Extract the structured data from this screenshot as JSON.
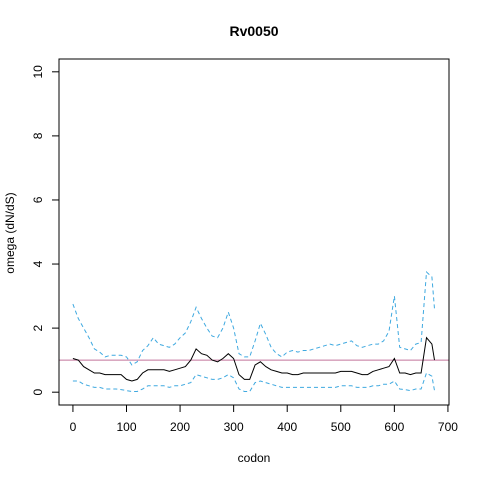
{
  "chart_data": {
    "type": "line",
    "title": "Rv0050",
    "xlabel": "codon",
    "ylabel": "omega (dN/dS)",
    "xlim": [
      -26,
      702
    ],
    "ylim": [
      -0.4,
      10.4
    ],
    "xticks": [
      0,
      100,
      200,
      300,
      400,
      500,
      600,
      700
    ],
    "yticks": [
      0,
      2,
      4,
      6,
      8,
      10
    ],
    "reference_line": {
      "y": 1.0,
      "color": "#c2739b"
    },
    "colors": {
      "estimate": "#000000",
      "ci": "#3fa9e0",
      "reference": "#c2739b"
    },
    "series": [
      {
        "style": "solid",
        "x": [
          0,
          10,
          20,
          30,
          40,
          50,
          60,
          70,
          80,
          90,
          100,
          110,
          120,
          130,
          140,
          150,
          160,
          170,
          180,
          190,
          200,
          210,
          220,
          230,
          240,
          250,
          260,
          270,
          280,
          290,
          300,
          310,
          320,
          330,
          340,
          350,
          360,
          370,
          380,
          390,
          400,
          410,
          420,
          430,
          440,
          450,
          460,
          470,
          480,
          490,
          500,
          510,
          520,
          530,
          540,
          550,
          560,
          570,
          580,
          590,
          600,
          610,
          620,
          630,
          640,
          650,
          660,
          670,
          675
        ],
        "values": [
          1.05,
          1.0,
          0.8,
          0.7,
          0.6,
          0.6,
          0.55,
          0.55,
          0.55,
          0.55,
          0.4,
          0.35,
          0.4,
          0.6,
          0.7,
          0.7,
          0.7,
          0.7,
          0.65,
          0.7,
          0.75,
          0.8,
          1.0,
          1.35,
          1.2,
          1.15,
          1.0,
          0.95,
          1.05,
          1.2,
          1.05,
          0.55,
          0.4,
          0.4,
          0.85,
          0.95,
          0.8,
          0.7,
          0.65,
          0.6,
          0.6,
          0.55,
          0.55,
          0.6,
          0.6,
          0.6,
          0.6,
          0.6,
          0.6,
          0.6,
          0.65,
          0.65,
          0.65,
          0.6,
          0.55,
          0.55,
          0.65,
          0.7,
          0.75,
          0.8,
          1.05,
          0.6,
          0.6,
          0.55,
          0.6,
          0.6,
          1.7,
          1.5,
          1.0
        ]
      },
      {
        "style": "dashed",
        "x": [
          0,
          10,
          20,
          30,
          40,
          50,
          60,
          70,
          80,
          90,
          100,
          110,
          120,
          130,
          140,
          150,
          160,
          170,
          180,
          190,
          200,
          210,
          220,
          230,
          240,
          250,
          260,
          270,
          280,
          290,
          300,
          310,
          320,
          330,
          340,
          350,
          360,
          370,
          380,
          390,
          400,
          410,
          420,
          430,
          440,
          450,
          460,
          470,
          480,
          490,
          500,
          510,
          520,
          530,
          540,
          550,
          560,
          570,
          580,
          590,
          600,
          610,
          620,
          630,
          640,
          650,
          660,
          670,
          675
        ],
        "values": [
          2.75,
          2.3,
          2.0,
          1.7,
          1.35,
          1.25,
          1.1,
          1.15,
          1.15,
          1.15,
          1.1,
          0.85,
          0.95,
          1.3,
          1.45,
          1.7,
          1.5,
          1.45,
          1.4,
          1.5,
          1.7,
          1.85,
          2.2,
          2.65,
          2.3,
          2.0,
          1.75,
          1.7,
          2.0,
          2.5,
          2.0,
          1.2,
          1.1,
          1.1,
          1.6,
          2.15,
          1.8,
          1.4,
          1.2,
          1.1,
          1.25,
          1.3,
          1.25,
          1.3,
          1.3,
          1.35,
          1.4,
          1.45,
          1.5,
          1.45,
          1.5,
          1.55,
          1.6,
          1.45,
          1.4,
          1.45,
          1.5,
          1.5,
          1.6,
          1.9,
          3.0,
          1.4,
          1.35,
          1.3,
          1.5,
          1.55,
          3.75,
          3.6,
          2.6
        ]
      },
      {
        "style": "dashed",
        "x": [
          0,
          10,
          20,
          30,
          40,
          50,
          60,
          70,
          80,
          90,
          100,
          110,
          120,
          130,
          140,
          150,
          160,
          170,
          180,
          190,
          200,
          210,
          220,
          230,
          240,
          250,
          260,
          270,
          280,
          290,
          300,
          310,
          320,
          330,
          340,
          350,
          360,
          370,
          380,
          390,
          400,
          410,
          420,
          430,
          440,
          450,
          460,
          470,
          480,
          490,
          500,
          510,
          520,
          530,
          540,
          550,
          560,
          570,
          580,
          590,
          600,
          610,
          620,
          630,
          640,
          650,
          660,
          670,
          675
        ],
        "values": [
          0.35,
          0.35,
          0.25,
          0.2,
          0.15,
          0.15,
          0.1,
          0.1,
          0.1,
          0.08,
          0.05,
          0.02,
          0.02,
          0.1,
          0.2,
          0.2,
          0.2,
          0.2,
          0.15,
          0.2,
          0.2,
          0.25,
          0.3,
          0.55,
          0.5,
          0.45,
          0.4,
          0.4,
          0.45,
          0.55,
          0.45,
          0.1,
          0.02,
          0.02,
          0.3,
          0.35,
          0.3,
          0.25,
          0.2,
          0.15,
          0.15,
          0.15,
          0.15,
          0.15,
          0.15,
          0.15,
          0.15,
          0.15,
          0.15,
          0.15,
          0.2,
          0.2,
          0.2,
          0.15,
          0.15,
          0.15,
          0.2,
          0.2,
          0.25,
          0.25,
          0.35,
          0.1,
          0.08,
          0.05,
          0.1,
          0.1,
          0.6,
          0.5,
          0.05
        ]
      }
    ]
  }
}
